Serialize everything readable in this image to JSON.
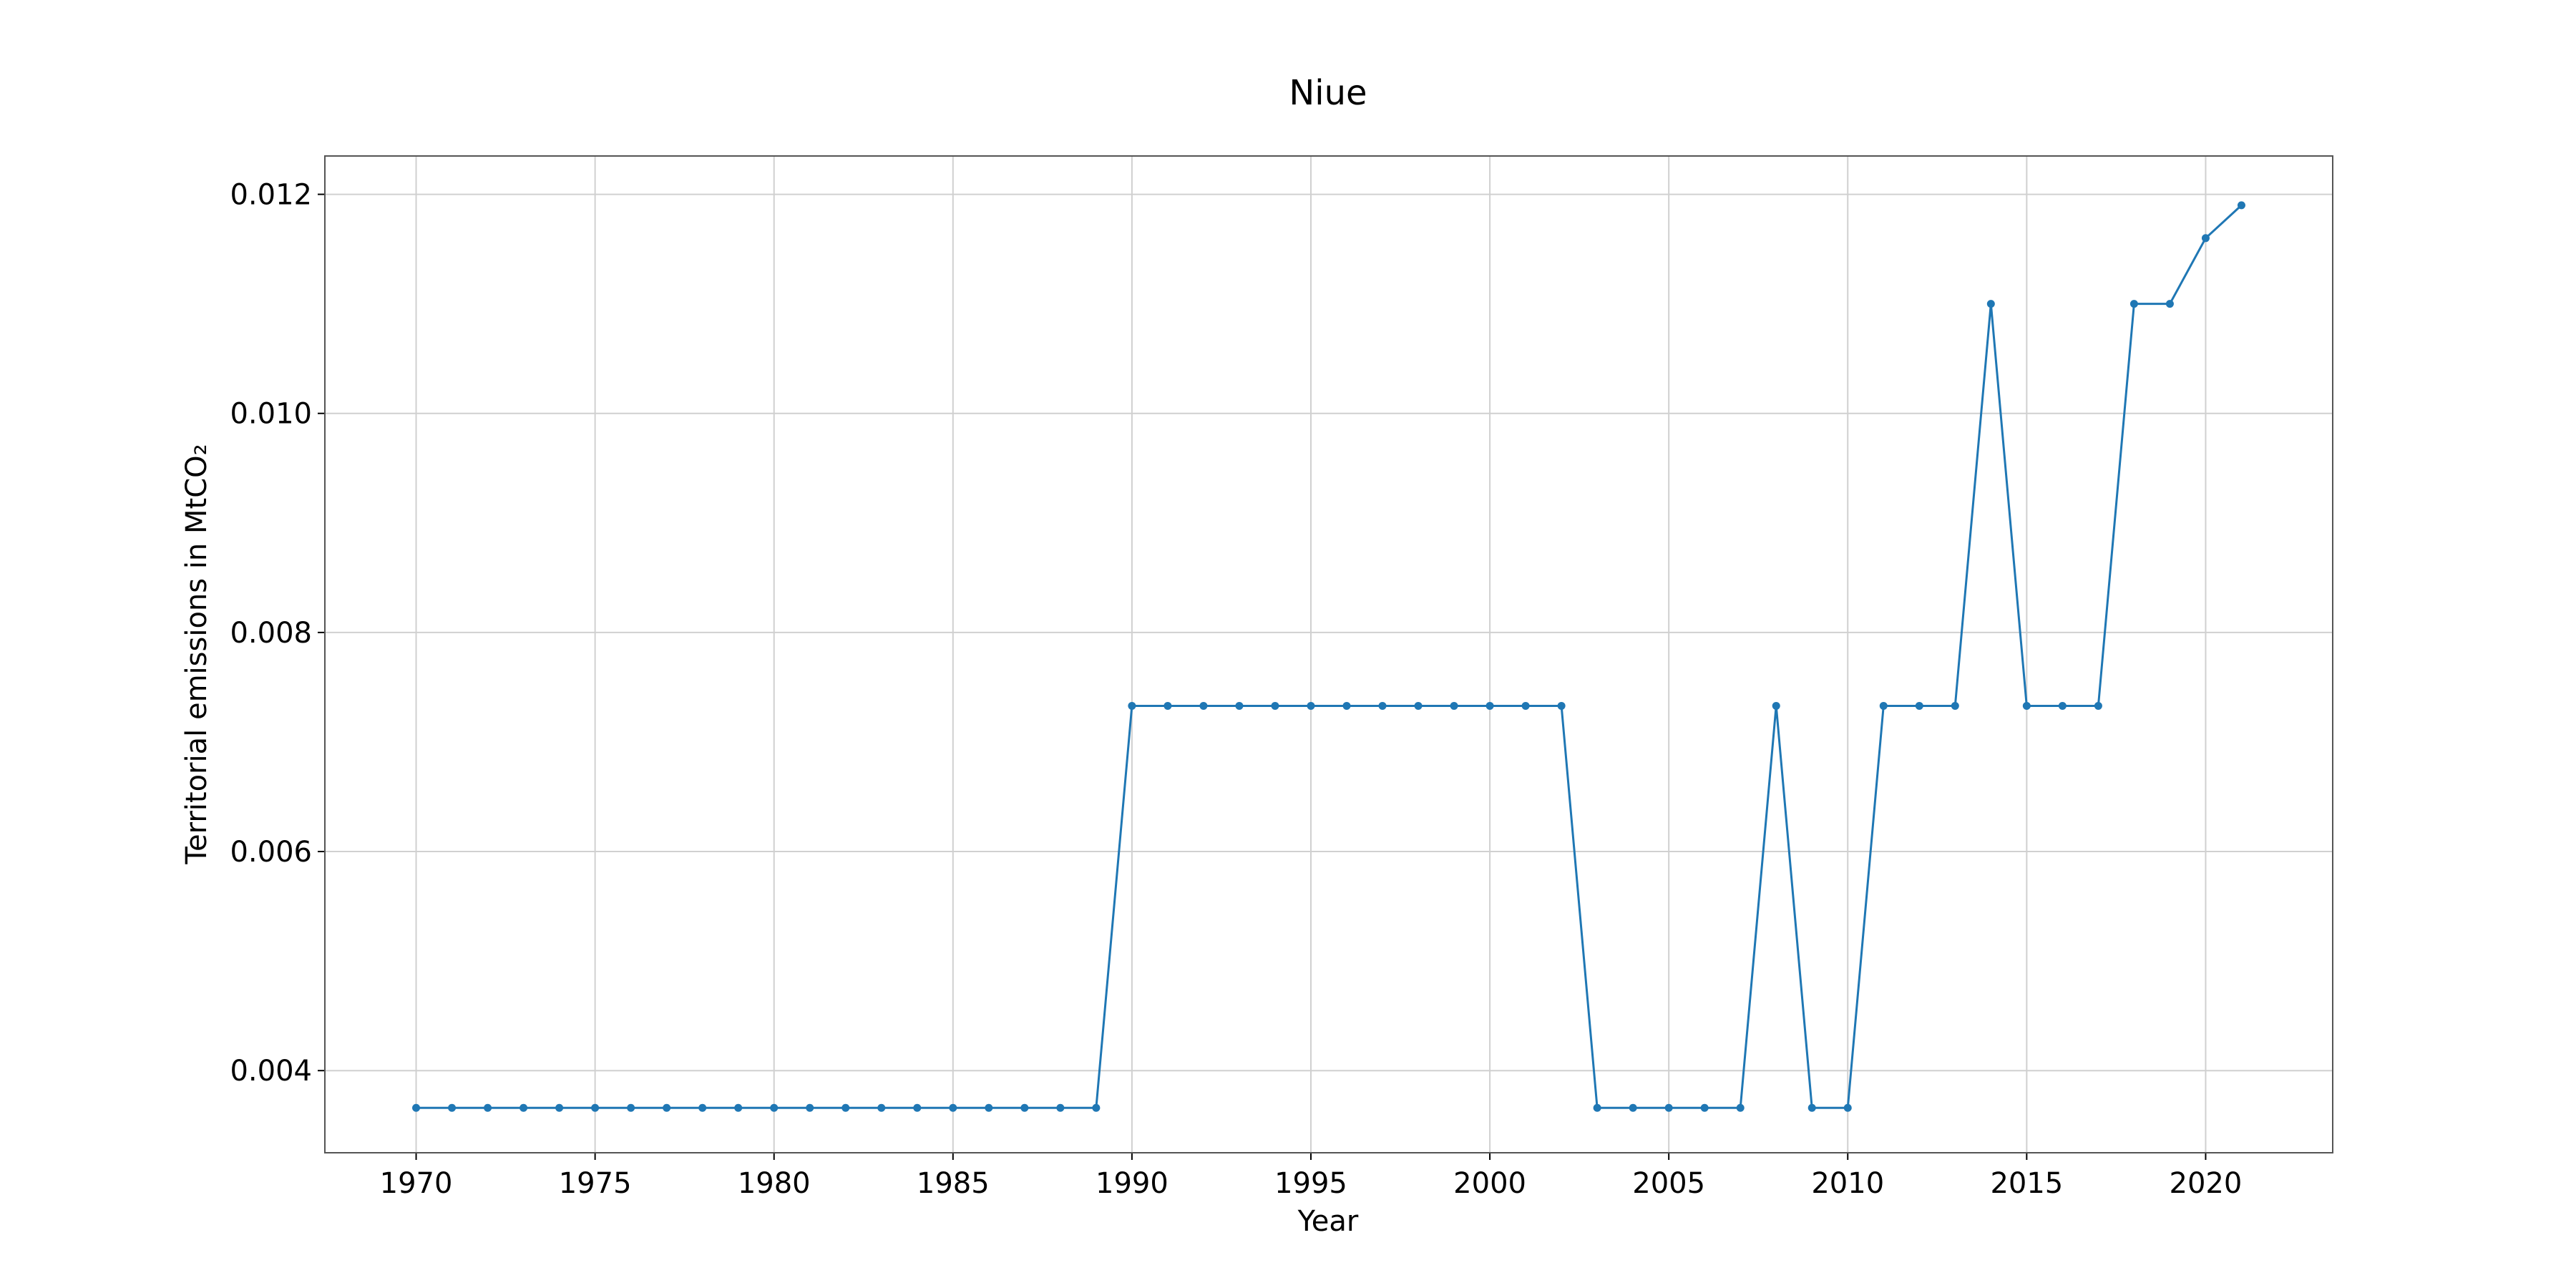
{
  "chart_data": {
    "type": "line",
    "title": "Niue",
    "xlabel": "Year",
    "ylabel": "Territorial emissions in MtCO₂",
    "xlim": [
      1967.45,
      2023.55
    ],
    "ylim": [
      0.00325,
      0.01235
    ],
    "xticks": [
      1970,
      1975,
      1980,
      1985,
      1990,
      1995,
      2000,
      2005,
      2010,
      2015,
      2020
    ],
    "yticks": [
      0.004,
      0.006,
      0.008,
      0.01,
      0.012
    ],
    "ytick_labels": [
      "0.004",
      "0.006",
      "0.008",
      "0.010",
      "0.012"
    ],
    "grid": true,
    "color": "#1f77b4",
    "series": [
      {
        "x": [
          1970,
          1971,
          1972,
          1973,
          1974,
          1975,
          1976,
          1977,
          1978,
          1979,
          1980,
          1981,
          1982,
          1983,
          1984,
          1985,
          1986,
          1987,
          1988,
          1989,
          1990,
          1991,
          1992,
          1993,
          1994,
          1995,
          1996,
          1997,
          1998,
          1999,
          2000,
          2001,
          2002,
          2003,
          2004,
          2005,
          2006,
          2007,
          2008,
          2009,
          2010,
          2011,
          2012,
          2013,
          2014,
          2015,
          2016,
          2017,
          2018,
          2019,
          2020,
          2021
        ],
        "values": [
          0.00366,
          0.00366,
          0.00366,
          0.00366,
          0.00366,
          0.00366,
          0.00366,
          0.00366,
          0.00366,
          0.00366,
          0.00366,
          0.00366,
          0.00366,
          0.00366,
          0.00366,
          0.00366,
          0.00366,
          0.00366,
          0.00366,
          0.00366,
          0.00733,
          0.00733,
          0.00733,
          0.00733,
          0.00733,
          0.00733,
          0.00733,
          0.00733,
          0.00733,
          0.00733,
          0.00733,
          0.00733,
          0.00733,
          0.00366,
          0.00366,
          0.00366,
          0.00366,
          0.00366,
          0.00733,
          0.00366,
          0.00366,
          0.00733,
          0.00733,
          0.00733,
          0.011,
          0.00733,
          0.00733,
          0.00733,
          0.011,
          0.011,
          0.0116,
          0.0119
        ]
      }
    ]
  }
}
